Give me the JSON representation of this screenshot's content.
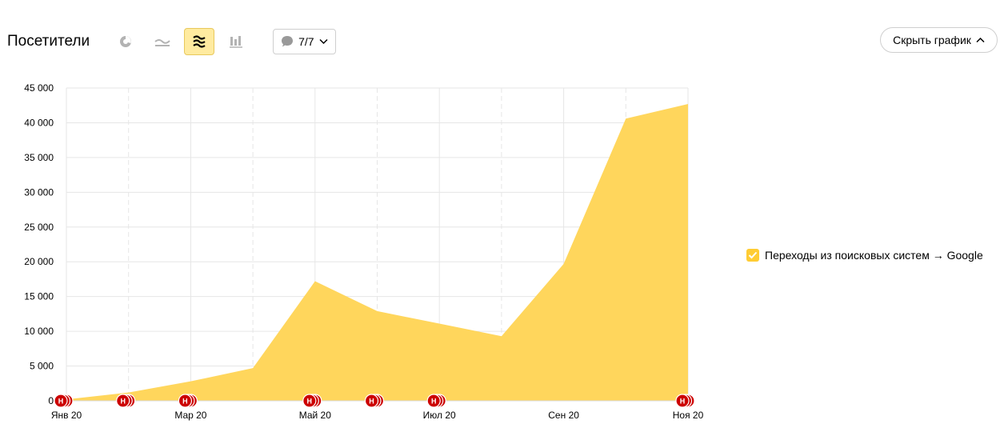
{
  "header": {
    "title": "Посетители"
  },
  "toolbar": {
    "icons": [
      "pie-chart-icon",
      "line-chart-icon",
      "stacked-area-icon",
      "bar-chart-icon"
    ],
    "active": "stacked-area-icon",
    "notes_label": "7/7",
    "hide_label": "Скрыть график"
  },
  "colors": {
    "area": "#ffd65c",
    "grid": "#e6e6e6",
    "note": "#cc0000",
    "accent": "#ffeba0",
    "check": "#ffcc33"
  },
  "legend": {
    "label": "Переходы из поисковых систем → Google",
    "checked": true
  },
  "chart_data": {
    "type": "area",
    "x": [
      "Янв 20",
      "Фев 20",
      "Мар 20",
      "Апр 20",
      "Май 20",
      "Июн 20",
      "Июл 20",
      "Авг 20",
      "Сен 20",
      "Окт 20",
      "Ноя 20"
    ],
    "x_ticks": [
      "Янв 20",
      "Мар 20",
      "Май 20",
      "Июл 20",
      "Сен 20",
      "Ноя 20"
    ],
    "series": [
      {
        "name": "Переходы из поисковых систем → Google",
        "values": [
          200,
          1200,
          2800,
          4700,
          17200,
          12900,
          11100,
          9300,
          19700,
          40600,
          42700
        ]
      }
    ],
    "ylim": [
      0,
      45000
    ],
    "y_ticks": [
      "0",
      "5 000",
      "10 000",
      "15 000",
      "20 000",
      "25 000",
      "30 000",
      "35 000",
      "40 000",
      "45 000"
    ],
    "grid": true,
    "legend_position": "right",
    "notes": [
      {
        "label": "Н",
        "month": 0
      },
      {
        "label": "Н",
        "month": 1
      },
      {
        "label": "Н",
        "month": 2
      },
      {
        "label": "Н",
        "month": 4
      },
      {
        "label": "Н",
        "month": 5
      },
      {
        "label": "Н",
        "month": 6
      },
      {
        "label": "Н",
        "month": 10
      }
    ]
  }
}
